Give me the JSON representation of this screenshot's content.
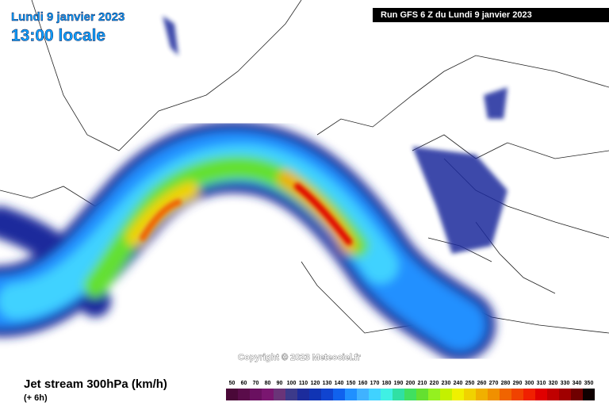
{
  "header": {
    "date": "Lundi 9 janvier 2023",
    "time": "13:00 locale",
    "run": "Run GFS 6 Z du Lundi 9 janvier 2023"
  },
  "copyright": "Copyright © 2023 Meteociel.fr",
  "footer": {
    "title": "Jet stream 300hPa (km/h)",
    "lead": "(+ 6h)"
  },
  "scale": {
    "values": [
      50,
      60,
      70,
      80,
      90,
      100,
      110,
      120,
      130,
      140,
      150,
      160,
      170,
      180,
      190,
      200,
      210,
      220,
      230,
      240,
      250,
      260,
      270,
      280,
      290,
      300,
      310,
      320,
      330,
      340,
      350
    ],
    "colors": [
      "#4a0838",
      "#5a0c4a",
      "#6a1060",
      "#7a1670",
      "#6a3478",
      "#3c3a8a",
      "#1c2c9c",
      "#1034b4",
      "#1044d0",
      "#1062ee",
      "#2090ff",
      "#40b2ff",
      "#40d2ff",
      "#40f0e4",
      "#30e0a4",
      "#40e060",
      "#64e030",
      "#94f020",
      "#c4f000",
      "#f0f000",
      "#f0d200",
      "#f0b000",
      "#f09000",
      "#f06400",
      "#f04200",
      "#f02000",
      "#e00000",
      "#c00000",
      "#a00000",
      "#700000",
      "#100000"
    ]
  }
}
